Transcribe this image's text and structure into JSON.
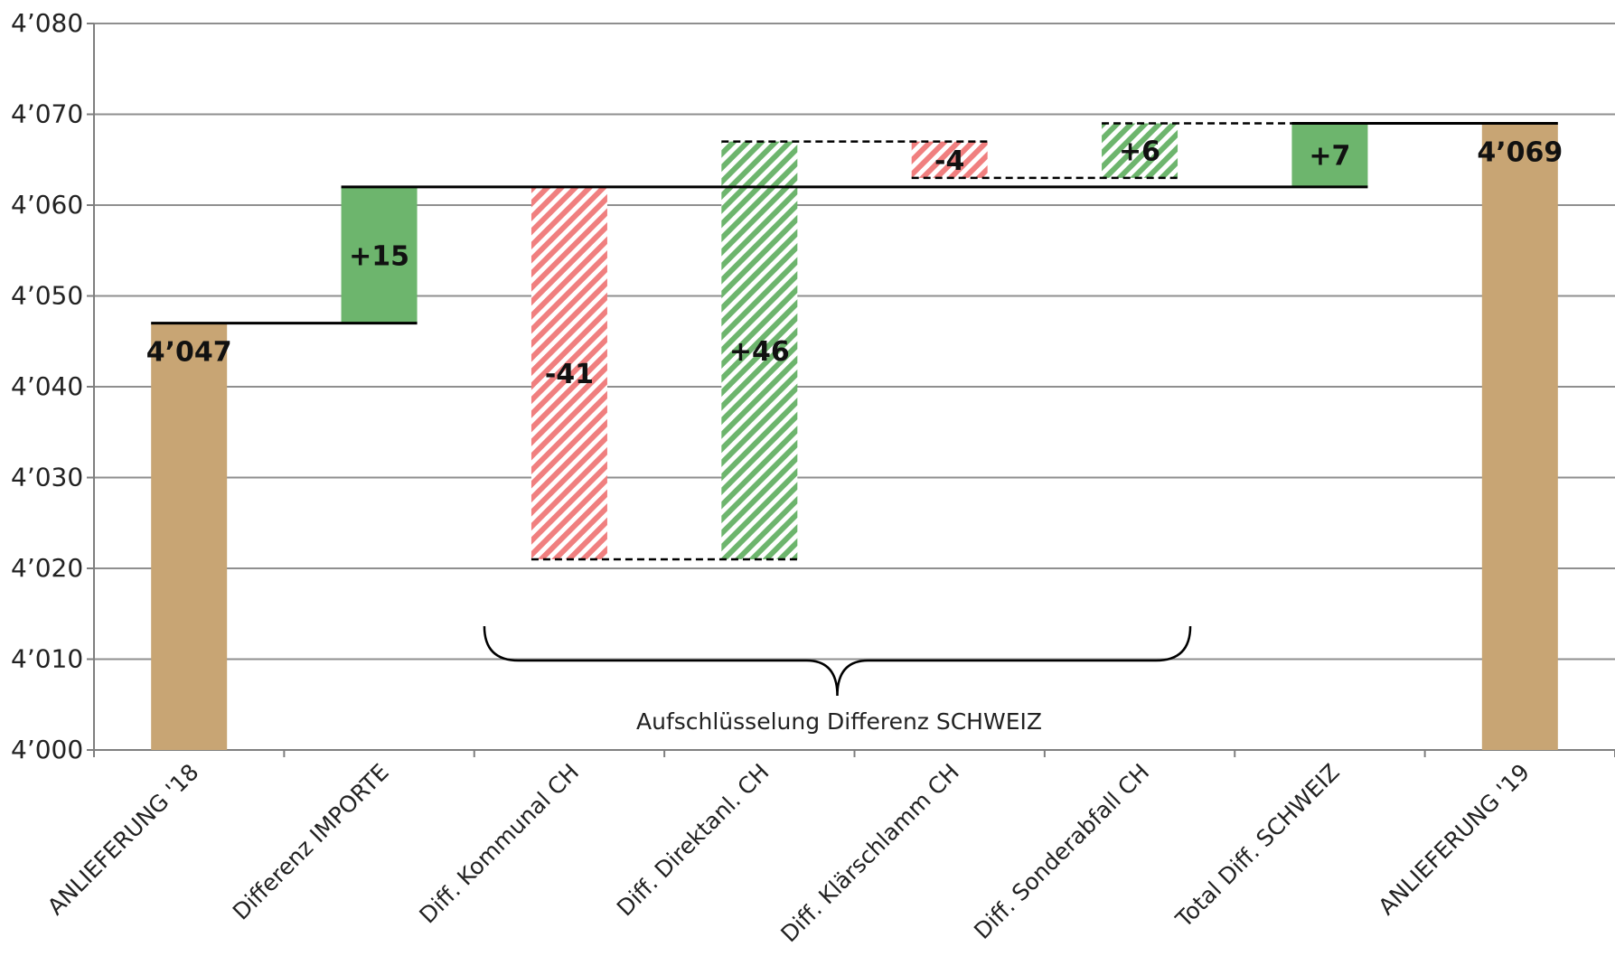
{
  "chart_data": {
    "type": "bar",
    "subtype": "waterfall",
    "title": "",
    "xlabel": "",
    "ylabel": "",
    "ylim": [
      4000,
      4080
    ],
    "yticks": [
      4000,
      4010,
      4020,
      4030,
      4040,
      4050,
      4060,
      4070,
      4080
    ],
    "ytick_labels": [
      "4’000",
      "4’010",
      "4’020",
      "4’030",
      "4’040",
      "4’050",
      "4’060",
      "4’070",
      "4’080"
    ],
    "grid": true,
    "legend": "none",
    "categories": [
      "ANLIEFERUNG '18",
      "Differenz IMPORTE",
      "Diff. Kommunal CH",
      "Diff. Direktanl. CH",
      "Diff. Klärschlamm CH",
      "Diff. Sonderabfall CH",
      "Total Diff. SCHWEIZ",
      "ANLIEFERUNG '19"
    ],
    "bars": [
      {
        "kind": "total",
        "start": 4000,
        "end": 4047,
        "label": "4’047",
        "style": "solid",
        "color": "#c8a574"
      },
      {
        "kind": "delta",
        "start": 4047,
        "end": 4062,
        "label": "+15",
        "style": "solid",
        "color": "#6db56d"
      },
      {
        "kind": "delta",
        "start": 4062,
        "end": 4021,
        "label": "-41",
        "style": "hatched",
        "color": "#f07f7f"
      },
      {
        "kind": "delta",
        "start": 4021,
        "end": 4067,
        "label": "+46",
        "style": "hatched",
        "color": "#6db56d"
      },
      {
        "kind": "delta",
        "start": 4067,
        "end": 4063,
        "label": "-4",
        "style": "hatched",
        "color": "#f07f7f"
      },
      {
        "kind": "delta",
        "start": 4063,
        "end": 4069,
        "label": "+6",
        "style": "hatched",
        "color": "#6db56d"
      },
      {
        "kind": "delta",
        "start": 4062,
        "end": 4069,
        "label": "+7",
        "style": "solid",
        "color": "#6db56d"
      },
      {
        "kind": "total",
        "start": 4000,
        "end": 4069,
        "label": "4’069",
        "style": "solid",
        "color": "#c8a574"
      }
    ],
    "connectors": [
      {
        "from": 0,
        "to": 1,
        "y": 4047,
        "style": "solid"
      },
      {
        "from": 1,
        "to": 6,
        "y": 4062,
        "style": "solid"
      },
      {
        "from": 2,
        "to": 3,
        "y": 4021,
        "style": "dashed"
      },
      {
        "from": 3,
        "to": 4,
        "y": 4067,
        "style": "dashed"
      },
      {
        "from": 4,
        "to": 5,
        "y": 4063,
        "style": "dashed"
      },
      {
        "from": 5,
        "to": 6,
        "y": 4069,
        "style": "dashed"
      },
      {
        "from": 6,
        "to": 7,
        "y": 4069,
        "style": "solid"
      }
    ],
    "brace": {
      "from": 2,
      "to": 5,
      "label": "Aufschlüsselung Differenz SCHWEIZ"
    },
    "colors": {
      "total": "#c8a574",
      "increase": "#6db56d",
      "decrease": "#f07f7f",
      "grid": "#8f8f8f",
      "axis": "#7f7f7f"
    }
  }
}
